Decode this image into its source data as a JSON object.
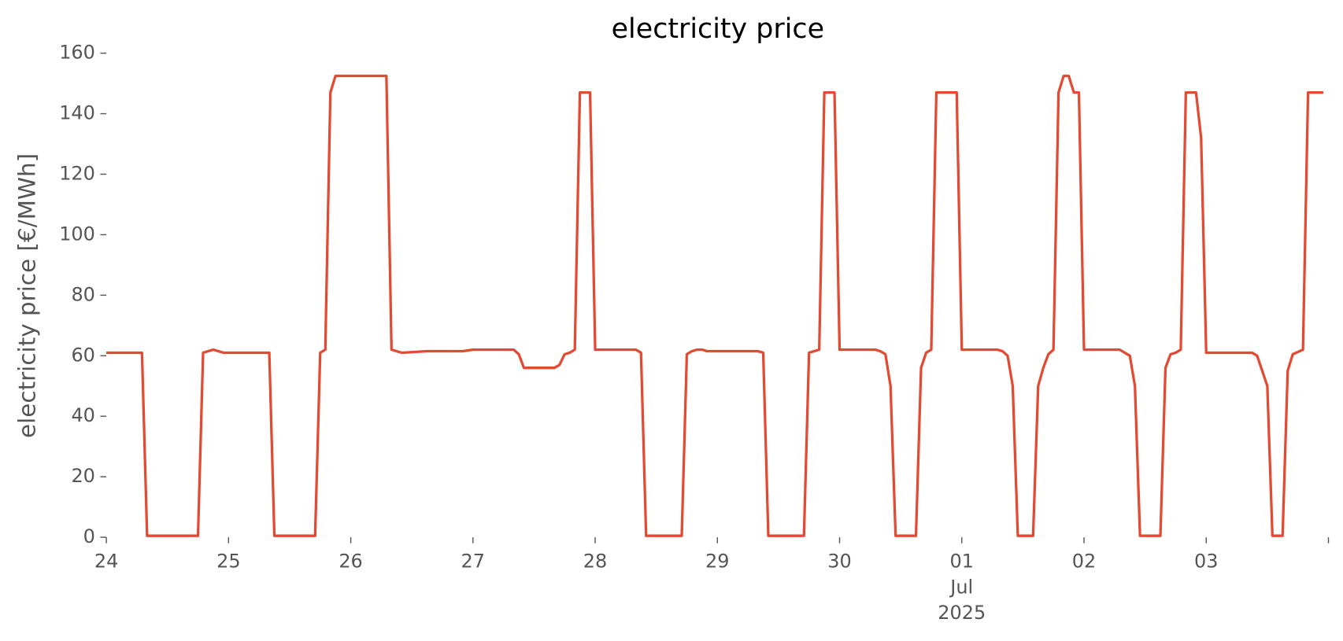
{
  "chart_data": {
    "type": "line",
    "title": "electricity price",
    "ylabel": "electricity price [€/MWh]",
    "color": "#e24a33",
    "x": [
      "2025-06-24T00:00",
      "2025-06-24T07:00",
      "2025-06-24T08:00",
      "2025-06-24T18:00",
      "2025-06-24T19:00",
      "2025-06-24T21:00",
      "2025-06-24T23:00",
      "2025-06-25T08:00",
      "2025-06-25T09:00",
      "2025-06-25T17:00",
      "2025-06-25T18:00",
      "2025-06-25T19:00",
      "2025-06-25T20:00",
      "2025-06-25T21:00",
      "2025-06-26T07:00",
      "2025-06-26T08:00",
      "2025-06-26T10:00",
      "2025-06-26T15:00",
      "2025-06-26T22:00",
      "2025-06-27T00:00",
      "2025-06-27T08:00",
      "2025-06-27T09:00",
      "2025-06-27T10:00",
      "2025-06-27T16:00",
      "2025-06-27T17:00",
      "2025-06-27T18:00",
      "2025-06-27T19:00",
      "2025-06-27T20:00",
      "2025-06-27T21:00",
      "2025-06-27T23:00",
      "2025-06-28T00:00",
      "2025-06-28T08:00",
      "2025-06-28T09:00",
      "2025-06-28T10:00",
      "2025-06-28T17:00",
      "2025-06-28T18:00",
      "2025-06-28T19:00",
      "2025-06-28T20:00",
      "2025-06-28T21:00",
      "2025-06-28T22:00",
      "2025-06-29T08:00",
      "2025-06-29T09:00",
      "2025-06-29T10:00",
      "2025-06-29T17:00",
      "2025-06-29T18:00",
      "2025-06-29T20:00",
      "2025-06-29T21:00",
      "2025-06-29T23:00",
      "2025-06-30T00:00",
      "2025-06-30T07:00",
      "2025-06-30T08:00",
      "2025-06-30T09:00",
      "2025-06-30T10:00",
      "2025-06-30T11:00",
      "2025-06-30T15:00",
      "2025-06-30T16:00",
      "2025-06-30T17:00",
      "2025-06-30T18:00",
      "2025-06-30T19:00",
      "2025-06-30T23:00",
      "2025-07-01T00:00",
      "2025-07-01T07:00",
      "2025-07-01T08:00",
      "2025-07-01T09:00",
      "2025-07-01T10:00",
      "2025-07-01T11:00",
      "2025-07-01T14:00",
      "2025-07-01T15:00",
      "2025-07-01T16:00",
      "2025-07-01T17:00",
      "2025-07-01T18:00",
      "2025-07-01T19:00",
      "2025-07-01T20:00",
      "2025-07-01T21:00",
      "2025-07-01T22:00",
      "2025-07-01T23:00",
      "2025-07-02T00:00",
      "2025-07-02T07:00",
      "2025-07-02T08:00",
      "2025-07-02T09:00",
      "2025-07-02T10:00",
      "2025-07-02T11:00",
      "2025-07-02T15:00",
      "2025-07-02T16:00",
      "2025-07-02T17:00",
      "2025-07-02T18:00",
      "2025-07-02T19:00",
      "2025-07-02T20:00",
      "2025-07-02T22:00",
      "2025-07-02T23:00",
      "2025-07-03T00:00",
      "2025-07-03T09:00",
      "2025-07-03T10:00",
      "2025-07-03T12:00",
      "2025-07-03T13:00",
      "2025-07-03T15:00",
      "2025-07-03T16:00",
      "2025-07-03T17:00",
      "2025-07-03T19:00",
      "2025-07-03T20:00",
      "2025-07-03T23:00"
    ],
    "values": [
      61,
      61,
      0.5,
      0.5,
      61,
      62,
      61,
      61,
      0.5,
      0.5,
      61,
      62,
      147,
      152.5,
      152.5,
      62,
      61,
      61.5,
      61.5,
      62,
      62,
      60.5,
      56,
      56,
      57,
      60.5,
      61,
      62,
      147,
      147,
      62,
      62,
      61,
      0.5,
      0.5,
      60.5,
      61.5,
      62,
      62,
      61.5,
      61.5,
      61,
      0.5,
      0.5,
      61,
      62,
      147,
      147,
      62,
      62,
      61.5,
      60.5,
      50,
      0.5,
      0.5,
      56,
      61,
      62,
      147,
      147,
      62,
      62,
      61.5,
      60,
      50,
      0.5,
      0.5,
      50,
      56,
      60.5,
      62,
      147,
      152.5,
      152.5,
      147,
      147,
      62,
      62,
      61,
      60,
      50,
      0.5,
      0.5,
      56,
      60.5,
      61,
      62,
      147,
      147,
      132,
      61,
      61,
      60,
      50,
      0.5,
      0.5,
      55,
      60.5,
      62,
      147,
      147
    ],
    "xlim": [
      "2025-06-24T00:00",
      "2025-07-04T00:00"
    ],
    "xticks": [
      {
        "value": "2025-06-24T00:00",
        "label": [
          "24"
        ]
      },
      {
        "value": "2025-06-25T00:00",
        "label": [
          "25"
        ]
      },
      {
        "value": "2025-06-26T00:00",
        "label": [
          "26"
        ]
      },
      {
        "value": "2025-06-27T00:00",
        "label": [
          "27"
        ]
      },
      {
        "value": "2025-06-28T00:00",
        "label": [
          "28"
        ]
      },
      {
        "value": "2025-06-29T00:00",
        "label": [
          "29"
        ]
      },
      {
        "value": "2025-06-30T00:00",
        "label": [
          "30"
        ]
      },
      {
        "value": "2025-07-01T00:00",
        "label": [
          "01",
          "Jul",
          "2025"
        ]
      },
      {
        "value": "2025-07-02T00:00",
        "label": [
          "02"
        ]
      },
      {
        "value": "2025-07-03T00:00",
        "label": [
          "03"
        ]
      },
      {
        "value": "2025-07-04T00:00",
        "label": null
      }
    ],
    "ylim": [
      0,
      160
    ],
    "yticks": [
      0,
      20,
      40,
      60,
      80,
      100,
      120,
      140,
      160
    ],
    "grid": false
  }
}
